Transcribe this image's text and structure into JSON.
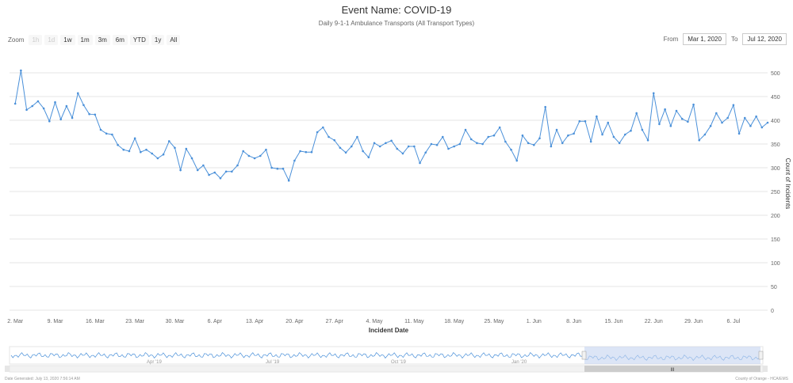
{
  "header": {
    "title": "Event Name: COVID-19",
    "subtitle": "Daily 9-1-1 Ambulance Transports (All Transport Types)"
  },
  "zoom": {
    "label": "Zoom",
    "buttons": [
      "1h",
      "1d",
      "1w",
      "1m",
      "3m",
      "6m",
      "YTD",
      "1y",
      "All"
    ],
    "disabled": [
      "1h",
      "1d"
    ]
  },
  "range": {
    "from_label": "From",
    "from_value": "Mar 1, 2020",
    "to_label": "To",
    "to_value": "Jul 12, 2020"
  },
  "chart_data": {
    "type": "line",
    "xlabel": "Incident Date",
    "ylabel": "Count of Incidents",
    "ylim": [
      0,
      500
    ],
    "y_ticks": [
      0,
      50,
      100,
      150,
      200,
      250,
      300,
      350,
      400,
      450,
      500
    ],
    "x_ticks": [
      "2. Mar",
      "9. Mar",
      "16. Mar",
      "23. Mar",
      "30. Mar",
      "6. Apr",
      "13. Apr",
      "20. Apr",
      "27. Apr",
      "4. May",
      "11. May",
      "18. May",
      "25. May",
      "1. Jun",
      "8. Jun",
      "15. Jun",
      "22. Jun",
      "29. Jun",
      "6. Jul"
    ],
    "x_start": "2020-03-01",
    "x_end": "2020-07-12",
    "grid": true,
    "line_color": "#4a90d9",
    "series": [
      {
        "values": [
          435,
          505,
          422,
          430,
          440,
          425,
          398,
          438,
          402,
          430,
          405,
          457,
          432,
          413,
          412,
          380,
          372,
          370,
          348,
          338,
          335,
          362,
          333,
          338,
          330,
          320,
          328,
          356,
          342,
          295,
          340,
          320,
          295,
          305,
          285,
          290,
          278,
          292,
          292,
          305,
          335,
          325,
          320,
          325,
          338,
          300,
          298,
          298,
          273,
          315,
          335,
          333,
          333,
          375,
          385,
          365,
          358,
          342,
          332,
          345,
          365,
          335,
          322,
          352,
          345,
          352,
          357,
          340,
          330,
          345,
          345,
          310,
          332,
          350,
          348,
          365,
          340,
          345,
          350,
          380,
          360,
          352,
          350,
          365,
          368,
          385,
          355,
          338,
          315,
          368,
          352,
          348,
          362,
          428,
          345,
          380,
          352,
          368,
          372,
          398,
          398,
          355,
          408,
          370,
          395,
          365,
          352,
          370,
          378,
          415,
          380,
          358,
          457,
          392,
          423,
          388,
          420,
          403,
          397,
          433,
          358,
          370,
          388,
          415,
          395,
          405,
          432,
          372,
          405,
          388,
          408,
          385,
          395
        ]
      }
    ]
  },
  "navigator": {
    "labels": [
      "Apr '19",
      "Jul '19",
      "Oct '19",
      "Jan '20"
    ],
    "handle_label": "III"
  },
  "footer": {
    "left": "Date Generated: July 13, 2020 7:56:14 AM",
    "right": "County of Orange - HCA/EMS"
  }
}
